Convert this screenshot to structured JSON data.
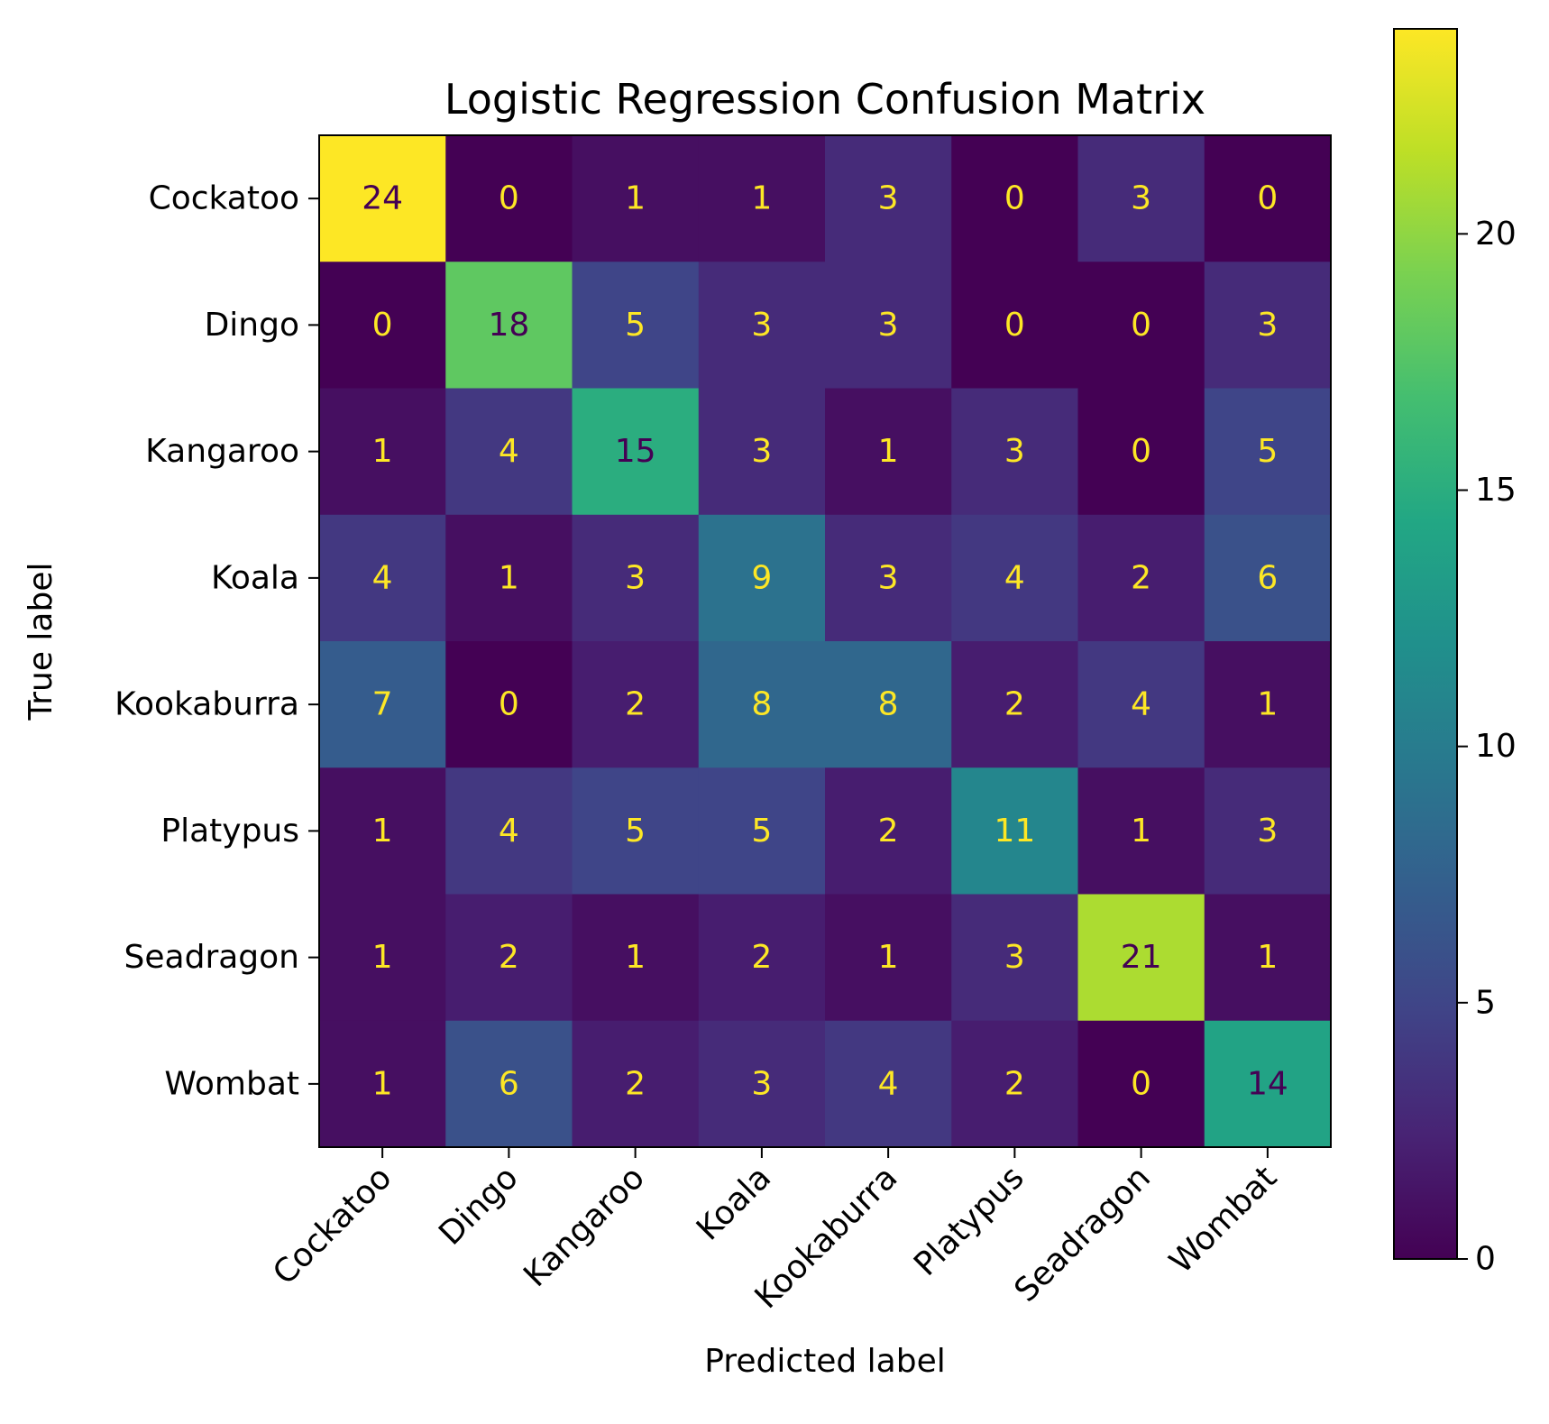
{
  "chart_data": {
    "type": "heatmap",
    "title": "Logistic Regression Confusion Matrix",
    "xlabel": "Predicted label",
    "ylabel": "True label",
    "x_categories": [
      "Cockatoo",
      "Dingo",
      "Kangaroo",
      "Koala",
      "Kookaburra",
      "Platypus",
      "Seadragon",
      "Wombat"
    ],
    "y_categories": [
      "Cockatoo",
      "Dingo",
      "Kangaroo",
      "Koala",
      "Kookaburra",
      "Platypus",
      "Seadragon",
      "Wombat"
    ],
    "values": [
      [
        24,
        0,
        1,
        1,
        3,
        0,
        3,
        0
      ],
      [
        0,
        18,
        5,
        3,
        3,
        0,
        0,
        3
      ],
      [
        1,
        4,
        15,
        3,
        1,
        3,
        0,
        5
      ],
      [
        4,
        1,
        3,
        9,
        3,
        4,
        2,
        6
      ],
      [
        7,
        0,
        2,
        8,
        8,
        2,
        4,
        1
      ],
      [
        1,
        4,
        5,
        5,
        2,
        11,
        1,
        3
      ],
      [
        1,
        2,
        1,
        2,
        1,
        3,
        21,
        1
      ],
      [
        1,
        6,
        2,
        3,
        4,
        2,
        0,
        14
      ]
    ],
    "colormap": "viridis",
    "colorbar": {
      "range": [
        0,
        24
      ],
      "ticks": [
        0,
        5,
        10,
        15,
        20
      ]
    },
    "x_tick_rotation_deg": 45,
    "grid": false
  }
}
